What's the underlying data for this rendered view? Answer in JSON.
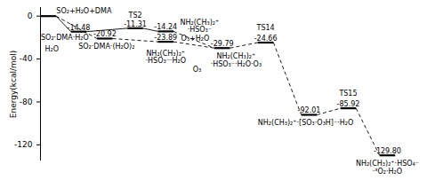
{
  "chart_data": {
    "type": "energy_profile",
    "y_label": "Energy(kcal/mol)",
    "xlim": [
      0,
      44
    ],
    "ylim": [
      -135,
      8
    ],
    "yticks": [
      0,
      -40,
      -80,
      -120
    ],
    "tick_labels": "y",
    "data_labels": true,
    "color": "#000000",
    "levels": [
      {
        "x": 0,
        "value": 0,
        "line_style": "solid"
      },
      {
        "x": 3.5,
        "value": -14.48,
        "value_label": "-14.48",
        "line_style": "solid"
      },
      {
        "x": 6.5,
        "value": -20.92,
        "value_label": "-20.92",
        "line_style": "solid"
      },
      {
        "x": 10,
        "value": -11.31,
        "value_label": "-11.31",
        "line_style": "solid"
      },
      {
        "x": 13.5,
        "value": -14.24,
        "value_label": "-14.24",
        "line_style": "solid"
      },
      {
        "x": 13.5,
        "value": -23.89,
        "value_label": "-23.89",
        "line_style": "solid"
      },
      {
        "x": 20,
        "value": -29.79,
        "value_label": "-29.79",
        "line_style": "solid"
      },
      {
        "x": 25,
        "value": -24.66,
        "value_label": "-24.66",
        "line_style": "solid"
      },
      {
        "x": 30,
        "value": -92.01,
        "value_label": "-92.01",
        "line_style": "solid"
      },
      {
        "x": 34.5,
        "value": -85.92,
        "value_label": "-85.92",
        "line_style": "solid"
      },
      {
        "x": 39,
        "value": -129.8,
        "value_label": "-129.80",
        "line_style": "solid"
      }
    ],
    "paths": [
      {
        "line_style": "solid",
        "levels": [
          0,
          1,
          3,
          4
        ]
      },
      {
        "line_style": "dashed",
        "levels": [
          0,
          2,
          5,
          6,
          7,
          8,
          9,
          10
        ]
      },
      {
        "line_style": "dashed",
        "levels": [
          4,
          6
        ]
      }
    ],
    "annotations": [
      {
        "text": "SO₂+H₂O+DMA",
        "x": 5,
        "y": 4.5
      },
      {
        "text": "SO₂·DMA·H₂O",
        "x": 2.8,
        "y": -20
      },
      {
        "text": "H₂O",
        "x": 1.3,
        "y": -31
      },
      {
        "text": "SO₂·DMA·(H₂O)₂",
        "x": 7.6,
        "y": -28
      },
      {
        "text": "TS2",
        "x": 10.9,
        "y": 1
      },
      {
        "text": "NH₂(CH₃)₂⁺\n·HSO₃⁻",
        "x": 18.3,
        "y": -9
      },
      {
        "text": "O₃+H₂O",
        "x": 17.8,
        "y": -21
      },
      {
        "text": "NH₂(CH₃)₂⁺\n·HSO₃⁻·H₂O",
        "x": 14.4,
        "y": -38
      },
      {
        "text": "O₃",
        "x": 18,
        "y": -50
      },
      {
        "text": "NH₂(CH₃)₂⁺\n·HSO₃⁻·H₂O·O₃",
        "x": 22.5,
        "y": -41
      },
      {
        "text": "TS14",
        "x": 25.9,
        "y": -11
      },
      {
        "text": "NH₂(CH₃)₂⁺·[SO₃·O₃H]⁻·H₂O",
        "x": 30.5,
        "y": -99
      },
      {
        "text": "TS15",
        "x": 35.4,
        "y": -72
      },
      {
        "text": "NH₂(CH₃)₂⁺·HSO₄⁻\n·³O₂·H₂O",
        "x": 39.9,
        "y": -141
      }
    ]
  }
}
